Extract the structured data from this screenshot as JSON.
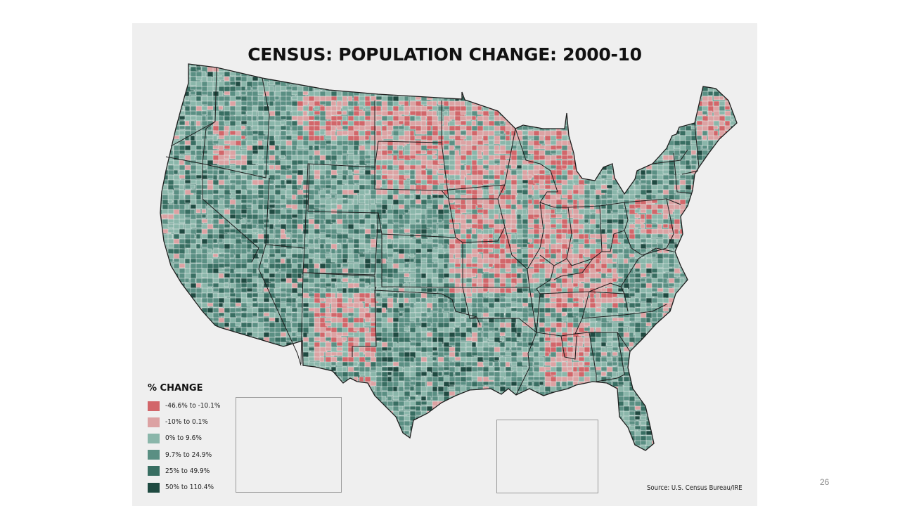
{
  "slide": {
    "page_number": "26"
  },
  "map": {
    "title": "CENSUS: POPULATION CHANGE: 2000-10",
    "source": "Source: U.S. Census Bureau/IRE",
    "legend": {
      "title": "% CHANGE",
      "items": [
        {
          "label": "-46.6% to -10.1%",
          "color": "#d2666a"
        },
        {
          "label": "-10% to 0.1%",
          "color": "#dca2a3"
        },
        {
          "label": "0% to 9.6%",
          "color": "#8ab6aa"
        },
        {
          "label": "9.7% to 24.9%",
          "color": "#5a8f83"
        },
        {
          "label": "25% to 49.9%",
          "color": "#386e62"
        },
        {
          "label": "50% to 110.4%",
          "color": "#1f4a41"
        }
      ]
    },
    "colors": {
      "background": "#efefef",
      "county_border": "#e8eeec",
      "state_border": "#1d1d1d"
    }
  }
}
